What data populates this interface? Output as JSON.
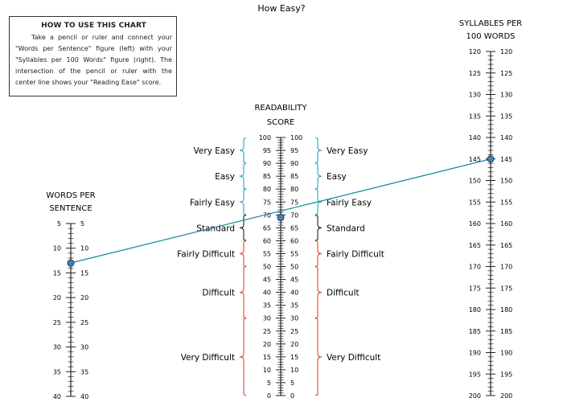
{
  "title": "How Easy?",
  "howto": {
    "heading": "HOW TO USE THIS CHART",
    "body": "Take a pencil or ruler and connect your \"Words per Sentence\" figure (left) with your \"Syllables per 100 Words\" figure (right). The intersection of the pencil or ruler with the center line shows your \"Reading Ease\" score."
  },
  "scales": {
    "words": {
      "label_line1": "WORDS PER",
      "label_line2": "SENTENCE",
      "range": [
        5,
        40
      ],
      "major_labels": [
        "5",
        "10",
        "15",
        "20",
        "25",
        "30",
        "35",
        "40"
      ]
    },
    "readability": {
      "label_line1": "READABILITY",
      "label_line2": "SCORE",
      "range": [
        100,
        0
      ],
      "major_labels": [
        "100",
        "95",
        "90",
        "85",
        "80",
        "75",
        "70",
        "65",
        "60",
        "55",
        "50",
        "45",
        "40",
        "35",
        "30",
        "25",
        "20",
        "15",
        "10",
        "5",
        "0"
      ]
    },
    "syllables": {
      "label_line1": "SYLLABLES PER",
      "label_line2": "100 WORDS",
      "range": [
        120,
        200
      ],
      "major_labels": [
        "120",
        "125",
        "130",
        "135",
        "140",
        "145",
        "150",
        "155",
        "160",
        "165",
        "170",
        "175",
        "180",
        "185",
        "190",
        "195",
        "200"
      ]
    }
  },
  "categories": [
    {
      "label": "Very Easy",
      "from": 90,
      "to": 100,
      "color": "#2aa7b8"
    },
    {
      "label": "Easy",
      "from": 80,
      "to": 90,
      "color": "#2aa7b8"
    },
    {
      "label": "Fairly Easy",
      "from": 70,
      "to": 80,
      "color": "#2aa7b8"
    },
    {
      "label": "Standard",
      "from": 60,
      "to": 70,
      "color": "#222222"
    },
    {
      "label": "Fairly Difficult",
      "from": 50,
      "to": 60,
      "color": "#d9473a"
    },
    {
      "label": "Difficult",
      "from": 30,
      "to": 50,
      "color": "#d9473a"
    },
    {
      "label": "Very Difficult",
      "from": 0,
      "to": 30,
      "color": "#d9473a"
    }
  ],
  "reading": {
    "words_per_sentence": 13,
    "syllables_per_100_words": 145,
    "score": 69,
    "line_color": "#1e8aa0",
    "marker_color": "#4a7fb5"
  }
}
